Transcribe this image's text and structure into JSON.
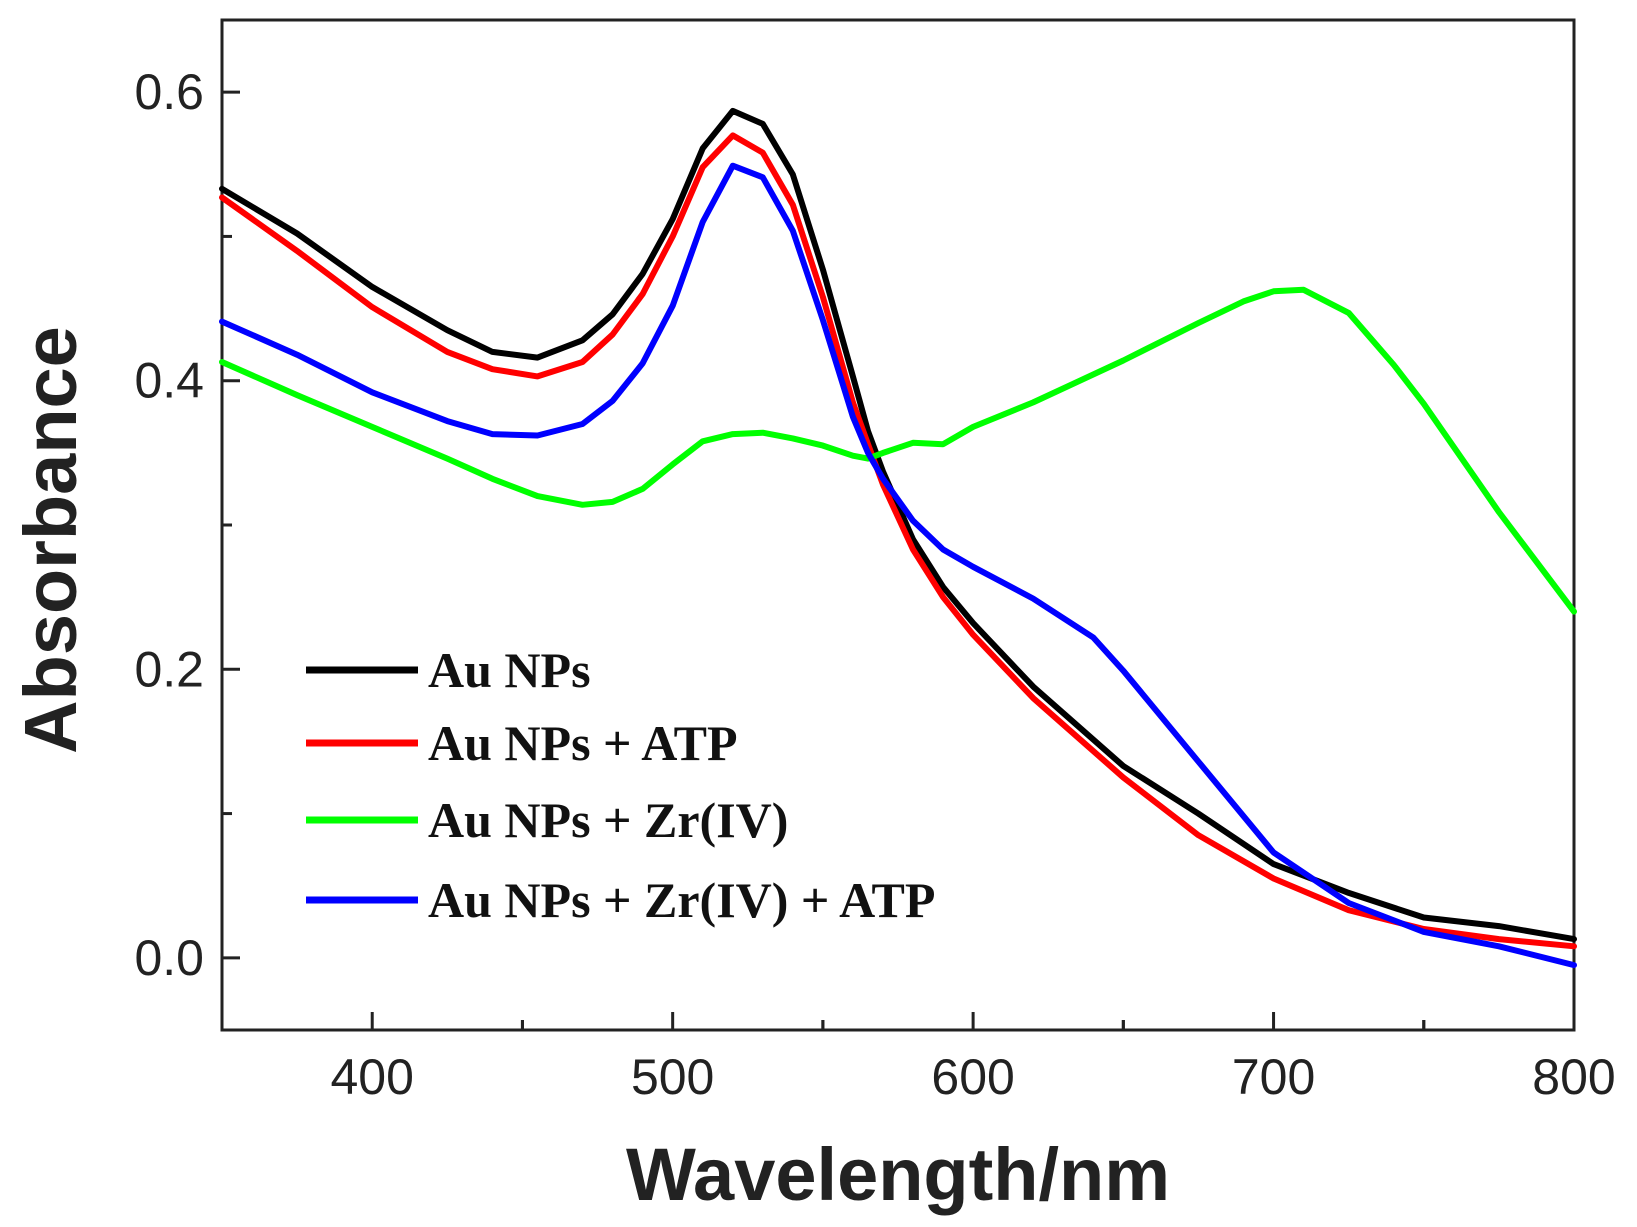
{
  "chart_data": {
    "type": "line",
    "title": "",
    "xlabel": "Wavelength/nm",
    "ylabel": "Absorbance",
    "xlim": [
      350,
      800
    ],
    "ylim": [
      -0.05,
      0.65
    ],
    "x_ticks": [
      400,
      500,
      600,
      700,
      800
    ],
    "x_tick_labels": [
      "400",
      "500",
      "600",
      "700",
      "800"
    ],
    "y_ticks": [
      0.0,
      0.2,
      0.4,
      0.6
    ],
    "y_tick_labels": [
      "0.0",
      "0.2",
      "0.4",
      "0.6"
    ],
    "grid": false,
    "legend_position": "lower-left",
    "series": [
      {
        "name": "Au NPs",
        "color": "#000000",
        "points": [
          [
            350,
            0.533
          ],
          [
            375,
            0.502
          ],
          [
            400,
            0.465
          ],
          [
            425,
            0.435
          ],
          [
            440,
            0.42
          ],
          [
            455,
            0.416
          ],
          [
            470,
            0.428
          ],
          [
            480,
            0.446
          ],
          [
            490,
            0.474
          ],
          [
            500,
            0.512
          ],
          [
            510,
            0.561
          ],
          [
            520,
            0.587
          ],
          [
            530,
            0.578
          ],
          [
            540,
            0.543
          ],
          [
            550,
            0.477
          ],
          [
            560,
            0.403
          ],
          [
            565,
            0.365
          ],
          [
            570,
            0.337
          ],
          [
            580,
            0.29
          ],
          [
            590,
            0.257
          ],
          [
            600,
            0.232
          ],
          [
            620,
            0.188
          ],
          [
            650,
            0.133
          ],
          [
            675,
            0.1
          ],
          [
            700,
            0.065
          ],
          [
            725,
            0.045
          ],
          [
            750,
            0.028
          ],
          [
            775,
            0.022
          ],
          [
            800,
            0.013
          ]
        ]
      },
      {
        "name": "Au NPs + ATP",
        "color": "#ff0000",
        "points": [
          [
            350,
            0.527
          ],
          [
            375,
            0.49
          ],
          [
            400,
            0.451
          ],
          [
            425,
            0.42
          ],
          [
            440,
            0.408
          ],
          [
            455,
            0.403
          ],
          [
            470,
            0.413
          ],
          [
            480,
            0.432
          ],
          [
            490,
            0.46
          ],
          [
            500,
            0.5
          ],
          [
            510,
            0.548
          ],
          [
            520,
            0.57
          ],
          [
            530,
            0.558
          ],
          [
            540,
            0.522
          ],
          [
            550,
            0.458
          ],
          [
            560,
            0.385
          ],
          [
            565,
            0.356
          ],
          [
            570,
            0.328
          ],
          [
            580,
            0.283
          ],
          [
            590,
            0.25
          ],
          [
            600,
            0.224
          ],
          [
            620,
            0.18
          ],
          [
            650,
            0.125
          ],
          [
            675,
            0.085
          ],
          [
            700,
            0.055
          ],
          [
            725,
            0.033
          ],
          [
            750,
            0.02
          ],
          [
            775,
            0.013
          ],
          [
            800,
            0.008
          ]
        ]
      },
      {
        "name": "Au NPs + Zr(IV)",
        "color": "#00ff00",
        "points": [
          [
            350,
            0.413
          ],
          [
            375,
            0.39
          ],
          [
            400,
            0.368
          ],
          [
            425,
            0.346
          ],
          [
            440,
            0.332
          ],
          [
            455,
            0.32
          ],
          [
            470,
            0.314
          ],
          [
            480,
            0.316
          ],
          [
            490,
            0.325
          ],
          [
            500,
            0.342
          ],
          [
            510,
            0.358
          ],
          [
            520,
            0.363
          ],
          [
            530,
            0.364
          ],
          [
            540,
            0.36
          ],
          [
            550,
            0.355
          ],
          [
            560,
            0.348
          ],
          [
            565,
            0.346
          ],
          [
            570,
            0.35
          ],
          [
            580,
            0.357
          ],
          [
            590,
            0.356
          ],
          [
            600,
            0.368
          ],
          [
            620,
            0.385
          ],
          [
            650,
            0.414
          ],
          [
            675,
            0.44
          ],
          [
            690,
            0.455
          ],
          [
            700,
            0.462
          ],
          [
            710,
            0.463
          ],
          [
            725,
            0.447
          ],
          [
            740,
            0.411
          ],
          [
            750,
            0.384
          ],
          [
            775,
            0.309
          ],
          [
            800,
            0.24
          ]
        ]
      },
      {
        "name": "Au NPs + Zr(IV) + ATP",
        "color": "#0000ff",
        "points": [
          [
            350,
            0.441
          ],
          [
            375,
            0.418
          ],
          [
            400,
            0.392
          ],
          [
            425,
            0.372
          ],
          [
            440,
            0.363
          ],
          [
            455,
            0.362
          ],
          [
            470,
            0.37
          ],
          [
            480,
            0.386
          ],
          [
            490,
            0.412
          ],
          [
            500,
            0.452
          ],
          [
            510,
            0.51
          ],
          [
            520,
            0.549
          ],
          [
            530,
            0.541
          ],
          [
            540,
            0.504
          ],
          [
            550,
            0.442
          ],
          [
            560,
            0.375
          ],
          [
            565,
            0.35
          ],
          [
            570,
            0.332
          ],
          [
            580,
            0.303
          ],
          [
            590,
            0.283
          ],
          [
            600,
            0.271
          ],
          [
            620,
            0.249
          ],
          [
            640,
            0.222
          ],
          [
            650,
            0.199
          ],
          [
            675,
            0.136
          ],
          [
            700,
            0.073
          ],
          [
            725,
            0.038
          ],
          [
            750,
            0.018
          ],
          [
            775,
            0.008
          ],
          [
            800,
            -0.005
          ]
        ]
      }
    ]
  }
}
